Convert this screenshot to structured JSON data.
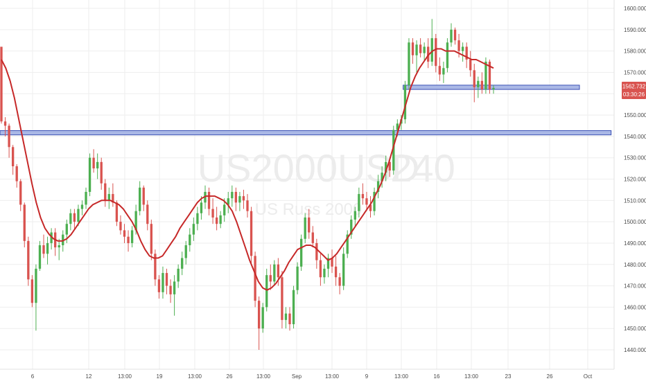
{
  "chart_data": {
    "type": "candlestick",
    "watermark": {
      "symbol": "US2000USD",
      "interval": "240",
      "name": "US Russ 2000"
    },
    "y_axis": {
      "ticks": [
        "1600.000",
        "1590.000",
        "1580.000",
        "1570.000",
        "1560.000",
        "1550.000",
        "1540.000",
        "1530.000",
        "1520.000",
        "1510.000",
        "1500.000",
        "1490.000",
        "1480.000",
        "1470.000",
        "1460.000",
        "1450.000",
        "1440.000"
      ],
      "range": [
        1435.5,
        1604.5
      ]
    },
    "x_axis": {
      "ticks": [
        "6",
        "12",
        "13:00",
        "19",
        "13:00",
        "26",
        "13:00",
        "Sep",
        "13:00",
        "9",
        "13:00",
        "16",
        "13:00",
        "23",
        "26",
        "Oct"
      ]
    },
    "last_price": {
      "price": "1562.732",
      "countdown": "03:30:26",
      "value": 1562.7,
      "color": "#d9534f"
    },
    "colors": {
      "up": "#4caf50",
      "down": "#d9534f",
      "ma": "#c62828",
      "zone_fill": "#aab8e6",
      "zone_border": "#3a50b4"
    },
    "zones": [
      {
        "low": 1562.0,
        "high": 1564.0,
        "x_start": 0.624,
        "x_end": 0.897
      },
      {
        "low": 1540.7,
        "high": 1542.7,
        "x_start": 0.0,
        "x_end": 0.946
      }
    ],
    "candles": [
      [
        1582,
        1582,
        1546,
        1547
      ],
      [
        1547,
        1549,
        1540,
        1545
      ],
      [
        1545,
        1546,
        1530,
        1535
      ],
      [
        1535,
        1536,
        1522,
        1526
      ],
      [
        1526,
        1527,
        1516,
        1519
      ],
      [
        1519,
        1520,
        1505,
        1508
      ],
      [
        1508,
        1509,
        1488,
        1491
      ],
      [
        1491,
        1493,
        1470,
        1473
      ],
      [
        1473,
        1475,
        1460,
        1462
      ],
      [
        1462,
        1480,
        1449,
        1478
      ],
      [
        1478,
        1491,
        1477,
        1489
      ],
      [
        1489,
        1494,
        1483,
        1485
      ],
      [
        1485,
        1493,
        1480,
        1490
      ],
      [
        1490,
        1497,
        1487,
        1495
      ],
      [
        1495,
        1497,
        1484,
        1488
      ],
      [
        1488,
        1492,
        1482,
        1489
      ],
      [
        1489,
        1496,
        1486,
        1494
      ],
      [
        1494,
        1501,
        1490,
        1499
      ],
      [
        1499,
        1506,
        1496,
        1504
      ],
      [
        1504,
        1506,
        1496,
        1500
      ],
      [
        1500,
        1508,
        1498,
        1506
      ],
      [
        1506,
        1510,
        1503,
        1508
      ],
      [
        1508,
        1516,
        1506,
        1514
      ],
      [
        1514,
        1532,
        1512,
        1530
      ],
      [
        1530,
        1534,
        1523,
        1525
      ],
      [
        1525,
        1532,
        1520,
        1528
      ],
      [
        1528,
        1530,
        1515,
        1518
      ],
      [
        1518,
        1520,
        1507,
        1510
      ],
      [
        1510,
        1516,
        1506,
        1513
      ],
      [
        1513,
        1518,
        1507,
        1509
      ],
      [
        1509,
        1510,
        1498,
        1500
      ],
      [
        1500,
        1503,
        1494,
        1496
      ],
      [
        1496,
        1499,
        1490,
        1493
      ],
      [
        1493,
        1496,
        1486,
        1490
      ],
      [
        1490,
        1498,
        1488,
        1496
      ],
      [
        1496,
        1508,
        1494,
        1505
      ],
      [
        1505,
        1519,
        1503,
        1516
      ],
      [
        1516,
        1517,
        1505,
        1508
      ],
      [
        1508,
        1510,
        1496,
        1499
      ],
      [
        1499,
        1501,
        1482,
        1485
      ],
      [
        1485,
        1487,
        1470,
        1473
      ],
      [
        1473,
        1475,
        1464,
        1467
      ],
      [
        1467,
        1479,
        1464,
        1476
      ],
      [
        1476,
        1478,
        1466,
        1470
      ],
      [
        1470,
        1473,
        1462,
        1466
      ],
      [
        1466,
        1475,
        1456,
        1472
      ],
      [
        1472,
        1480,
        1469,
        1478
      ],
      [
        1478,
        1486,
        1475,
        1483
      ],
      [
        1483,
        1491,
        1480,
        1489
      ],
      [
        1489,
        1497,
        1486,
        1494
      ],
      [
        1494,
        1502,
        1491,
        1499
      ],
      [
        1499,
        1507,
        1496,
        1504
      ],
      [
        1504,
        1512,
        1501,
        1509
      ],
      [
        1509,
        1517,
        1506,
        1514
      ],
      [
        1514,
        1516,
        1503,
        1506
      ],
      [
        1506,
        1511,
        1499,
        1502
      ],
      [
        1502,
        1507,
        1496,
        1499
      ],
      [
        1499,
        1505,
        1497,
        1503
      ],
      [
        1503,
        1511,
        1500,
        1508
      ],
      [
        1508,
        1514,
        1504,
        1511
      ],
      [
        1511,
        1517,
        1507,
        1514
      ],
      [
        1514,
        1516,
        1505,
        1509
      ],
      [
        1509,
        1514,
        1505,
        1512
      ],
      [
        1512,
        1515,
        1506,
        1510
      ],
      [
        1510,
        1513,
        1502,
        1505
      ],
      [
        1505,
        1507,
        1480,
        1484
      ],
      [
        1484,
        1486,
        1460,
        1463
      ],
      [
        1463,
        1465,
        1440,
        1450
      ],
      [
        1450,
        1462,
        1448,
        1460
      ],
      [
        1460,
        1478,
        1458,
        1475
      ],
      [
        1475,
        1480,
        1468,
        1472
      ],
      [
        1472,
        1482,
        1470,
        1480
      ],
      [
        1480,
        1483,
        1470,
        1474
      ],
      [
        1474,
        1477,
        1450,
        1454
      ],
      [
        1454,
        1460,
        1450,
        1457
      ],
      [
        1457,
        1460,
        1449,
        1452
      ],
      [
        1452,
        1470,
        1450,
        1468
      ],
      [
        1468,
        1481,
        1466,
        1479
      ],
      [
        1479,
        1494,
        1477,
        1492
      ],
      [
        1492,
        1504,
        1490,
        1502
      ],
      [
        1502,
        1506,
        1492,
        1495
      ],
      [
        1495,
        1498,
        1488,
        1490
      ],
      [
        1490,
        1492,
        1478,
        1482
      ],
      [
        1482,
        1485,
        1470,
        1474
      ],
      [
        1474,
        1480,
        1471,
        1478
      ],
      [
        1478,
        1485,
        1474,
        1483
      ],
      [
        1483,
        1487,
        1476,
        1479
      ],
      [
        1479,
        1484,
        1470,
        1474
      ],
      [
        1474,
        1476,
        1466,
        1470
      ],
      [
        1470,
        1488,
        1468,
        1485
      ],
      [
        1485,
        1496,
        1483,
        1494
      ],
      [
        1494,
        1503,
        1492,
        1501
      ],
      [
        1501,
        1507,
        1498,
        1505
      ],
      [
        1505,
        1516,
        1502,
        1513
      ],
      [
        1513,
        1518,
        1508,
        1511
      ],
      [
        1511,
        1514,
        1505,
        1508
      ],
      [
        1508,
        1512,
        1502,
        1505
      ],
      [
        1505,
        1516,
        1503,
        1514
      ],
      [
        1514,
        1522,
        1511,
        1519
      ],
      [
        1519,
        1526,
        1516,
        1523
      ],
      [
        1523,
        1531,
        1519,
        1528
      ],
      [
        1528,
        1530,
        1521,
        1524
      ],
      [
        1524,
        1545,
        1522,
        1543
      ],
      [
        1543,
        1548,
        1540,
        1546
      ],
      [
        1546,
        1550,
        1543,
        1548
      ],
      [
        1548,
        1566,
        1546,
        1564
      ],
      [
        1564,
        1586,
        1562,
        1584
      ],
      [
        1584,
        1586,
        1574,
        1578
      ],
      [
        1578,
        1585,
        1570,
        1583
      ],
      [
        1583,
        1586,
        1577,
        1579
      ],
      [
        1579,
        1584,
        1575,
        1582
      ],
      [
        1582,
        1586,
        1572,
        1575
      ],
      [
        1575,
        1595,
        1573,
        1586
      ],
      [
        1586,
        1588,
        1570,
        1573
      ],
      [
        1573,
        1577,
        1566,
        1569
      ],
      [
        1569,
        1575,
        1565,
        1572
      ],
      [
        1572,
        1586,
        1570,
        1584
      ],
      [
        1584,
        1593,
        1582,
        1590
      ],
      [
        1590,
        1591,
        1583,
        1585
      ],
      [
        1585,
        1588,
        1577,
        1580
      ],
      [
        1580,
        1584,
        1575,
        1582
      ],
      [
        1582,
        1584,
        1572,
        1576
      ],
      [
        1576,
        1580,
        1568,
        1571
      ],
      [
        1571,
        1574,
        1556,
        1563
      ],
      [
        1563,
        1568,
        1558,
        1566
      ],
      [
        1566,
        1570,
        1560,
        1562
      ],
      [
        1562,
        1577,
        1560,
        1575
      ],
      [
        1575,
        1576,
        1560,
        1562
      ],
      [
        1562,
        1564,
        1560,
        1562.7
      ]
    ],
    "moving_average": [
      1576,
      1572,
      1566,
      1558,
      1548,
      1538,
      1528,
      1518,
      1509,
      1502,
      1497,
      1494,
      1492,
      1491,
      1491,
      1492,
      1494,
      1497,
      1500,
      1503,
      1506,
      1508,
      1509,
      1510,
      1510,
      1510,
      1509,
      1508,
      1506,
      1503,
      1500,
      1496,
      1491,
      1487,
      1484,
      1483,
      1483,
      1484,
      1487,
      1490,
      1493,
      1497,
      1500,
      1503,
      1506,
      1509,
      1511,
      1512,
      1512,
      1512,
      1511,
      1510,
      1508,
      1505,
      1500,
      1494,
      1488,
      1482,
      1477,
      1472,
      1469,
      1468,
      1469,
      1471,
      1474,
      1477,
      1481,
      1484,
      1487,
      1488,
      1489,
      1489,
      1488,
      1486,
      1484,
      1482,
      1483,
      1485,
      1488,
      1491,
      1494,
      1497,
      1500,
      1503,
      1506,
      1509,
      1513,
      1517,
      1522,
      1528,
      1535,
      1542,
      1549,
      1556,
      1563,
      1568,
      1572,
      1575,
      1578,
      1580,
      1581,
      1581,
      1580,
      1580,
      1580,
      1579,
      1578,
      1577,
      1576,
      1576,
      1575,
      1574,
      1573,
      1572
    ]
  }
}
